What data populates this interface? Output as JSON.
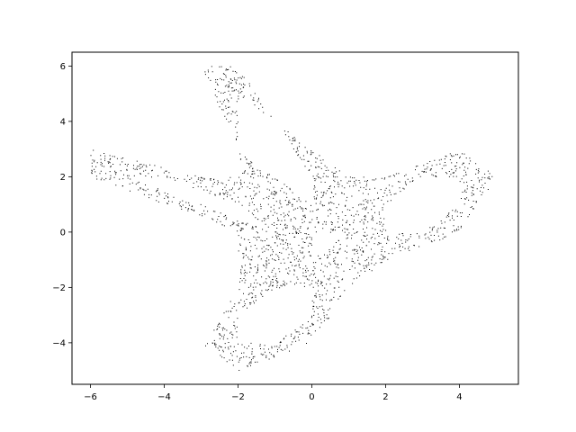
{
  "colors": {
    "points": "#000000",
    "axes": "#000000",
    "background": "#ffffff"
  },
  "chart_data": {
    "type": "scatter",
    "title": "",
    "xlabel": "",
    "ylabel": "",
    "xlim": [
      -6.5,
      5.6
    ],
    "ylim": [
      -5.5,
      6.5
    ],
    "xticks": [
      -6,
      -4,
      -2,
      0,
      2,
      4
    ],
    "yticks": [
      -4,
      -2,
      0,
      2,
      4,
      6
    ],
    "xtick_labels": [
      "−6",
      "−4",
      "−2",
      "0",
      "2",
      "4"
    ],
    "ytick_labels": [
      "−4",
      "−2",
      "0",
      "2",
      "4",
      "6"
    ],
    "grid": false,
    "marker": "pixel",
    "shape_outline": [
      [
        -3,
        6
      ],
      [
        -2,
        6
      ],
      [
        -1,
        4
      ],
      [
        0,
        3
      ],
      [
        1,
        2
      ],
      [
        2,
        2
      ],
      [
        4,
        3
      ],
      [
        5,
        2
      ],
      [
        4,
        0
      ],
      [
        2,
        -1
      ],
      [
        1,
        -2
      ],
      [
        0,
        -4
      ],
      [
        -2,
        -5
      ],
      [
        -3,
        -4
      ],
      [
        -2,
        -2
      ],
      [
        -2,
        0
      ],
      [
        -6,
        2
      ],
      [
        -6,
        3
      ],
      [
        -3,
        2
      ],
      [
        -2,
        2
      ],
      [
        -2,
        3
      ]
    ],
    "holes": [
      [
        [
          -2,
          5
        ],
        [
          -1,
          4
        ],
        [
          0,
          2
        ],
        [
          0,
          1
        ],
        [
          -2,
          3
        ]
      ],
      [
        [
          -5,
          2
        ],
        [
          -4,
          2
        ],
        [
          -2,
          1
        ],
        [
          -1,
          0
        ],
        [
          -3,
          1
        ]
      ],
      [
        [
          2,
          1
        ],
        [
          3,
          2
        ],
        [
          4,
          2
        ],
        [
          4,
          1
        ],
        [
          3,
          0
        ],
        [
          2,
          0
        ]
      ],
      [
        [
          0,
          0
        ],
        [
          1,
          0
        ],
        [
          0,
          -1
        ]
      ],
      [
        [
          -2,
          -3
        ],
        [
          -1,
          -2
        ],
        [
          0,
          -2
        ],
        [
          0,
          -3
        ],
        [
          -1,
          -4
        ],
        [
          -2,
          -4
        ]
      ]
    ]
  }
}
